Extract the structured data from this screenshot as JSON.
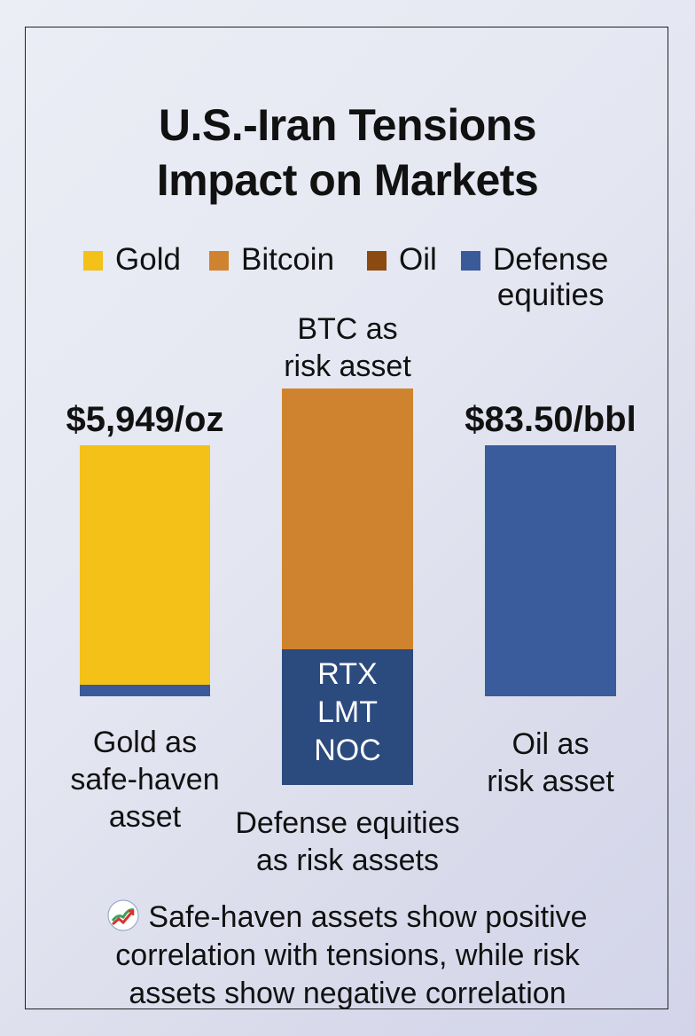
{
  "chart_data": {
    "type": "bar",
    "title": [
      "U.S.-Iran Tensions",
      "Impact on Markets"
    ],
    "legend": [
      {
        "name": "Gold",
        "color": "#f3c117"
      },
      {
        "name": "Bitcoin",
        "color": "#d0832e"
      },
      {
        "name": "Oil",
        "color": "#8b4a12"
      },
      {
        "name": "Defense equities",
        "color": "#3a5a9a"
      }
    ],
    "legend_labels": {
      "gold": "Gold",
      "bitcoin": "Bitcoin",
      "oil": "Oil",
      "defense_line1": "Defense",
      "defense_line2": "equities"
    },
    "bars": [
      {
        "value_label": "$5,949/oz",
        "caption": [
          "Gold as",
          "safe-haven",
          "asset"
        ],
        "segments": [
          {
            "series": "Gold",
            "color": "#f3c117"
          },
          {
            "series": "Defense equities",
            "color": "#3a5a9a"
          }
        ]
      },
      {
        "top_annotation": [
          "BTC as",
          "risk asset"
        ],
        "inner_labels": [
          "RTX",
          "LMT",
          "NOC"
        ],
        "caption": [
          "Defense equities",
          "as risk assets"
        ],
        "segments": [
          {
            "series": "Bitcoin",
            "color": "#d0832e"
          },
          {
            "series": "Defense equities",
            "color": "#2b4a7e"
          }
        ]
      },
      {
        "value_label": "$83.50/bbl",
        "caption": [
          "Oil as",
          "risk asset"
        ],
        "segments": [
          {
            "series": "Defense equities",
            "color": "#3a5c9c"
          }
        ]
      }
    ],
    "grid": false,
    "legend_position": "top"
  },
  "footer": {
    "icon": "chart-trend-icon",
    "line1": "Safe-haven assets show positive",
    "line2": "correlation with tensions, while risk",
    "line3": "assets show negative correlation"
  }
}
